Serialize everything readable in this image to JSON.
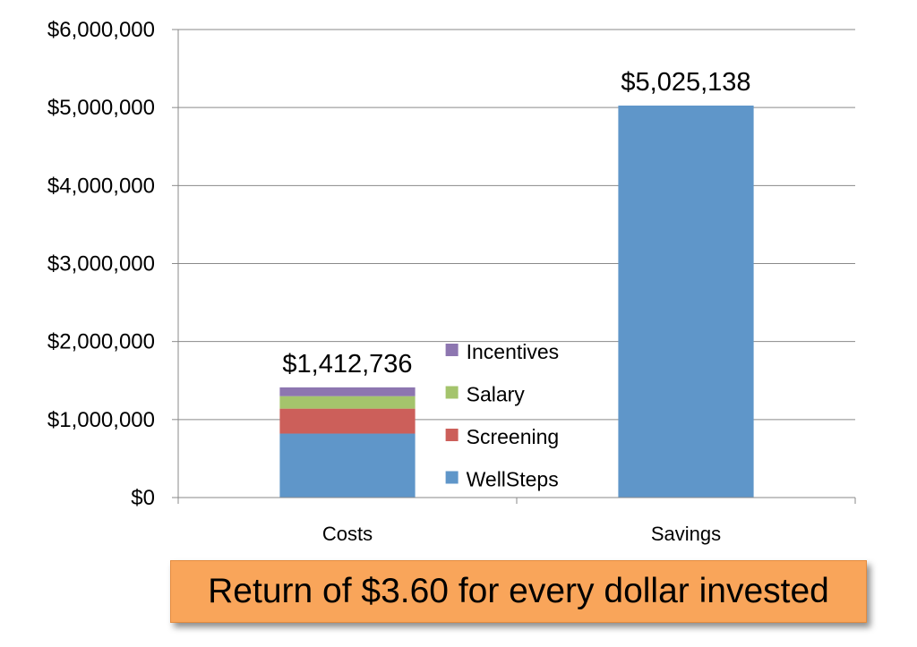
{
  "chart_data": {
    "type": "bar",
    "stacked": true,
    "categories": [
      "Costs",
      "Savings"
    ],
    "series": [
      {
        "name": "WellSteps",
        "color": "#5f96c9",
        "values": [
          820000,
          5025138
        ]
      },
      {
        "name": "Screening",
        "color": "#cc5f5a",
        "values": [
          320000,
          0
        ]
      },
      {
        "name": "Salary",
        "color": "#a4c46c",
        "values": [
          160000,
          0
        ]
      },
      {
        "name": "Incentives",
        "color": "#8d76b0",
        "values": [
          112736,
          0
        ]
      }
    ],
    "totals": [
      "$1,412,736",
      "$5,025,138"
    ],
    "y_ticks": [
      "$0",
      "$1,000,000",
      "$2,000,000",
      "$3,000,000",
      "$4,000,000",
      "$5,000,000",
      "$6,000,000"
    ],
    "ylim": [
      0,
      6000000
    ],
    "grid": true,
    "legend_position": "inside, right of Costs bar",
    "title": "",
    "xlabel": "",
    "ylabel": ""
  },
  "callout": {
    "text": "Return of $3.60 for every dollar invested",
    "background": "#f9a55a"
  }
}
